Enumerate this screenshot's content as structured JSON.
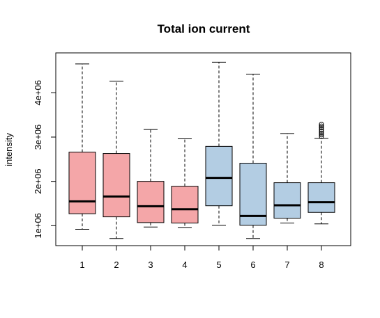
{
  "chart_data": {
    "type": "boxplot",
    "title": "Total ion current",
    "xlabel": "",
    "ylabel": "intensity",
    "categories": [
      "1",
      "2",
      "3",
      "4",
      "5",
      "6",
      "7",
      "8"
    ],
    "y_ticks": [
      1000000,
      2000000,
      3000000,
      4000000
    ],
    "y_tick_labels": [
      "1e+06",
      "2e+06",
      "3e+06",
      "4e+06"
    ],
    "ylim": [
      550000,
      4900000
    ],
    "grid": false,
    "legend": "none",
    "colors": {
      "group_a": "#F4A6A8",
      "group_b": "#B3CDE3",
      "stroke": "#000000"
    },
    "boxes": [
      {
        "label": "1",
        "color_group": "group_a",
        "whisker_low": 920000,
        "q1": 1270000,
        "median": 1550000,
        "q3": 2660000,
        "whisker_high": 4650000,
        "outliers": []
      },
      {
        "label": "2",
        "color_group": "group_a",
        "whisker_low": 710000,
        "q1": 1200000,
        "median": 1660000,
        "q3": 2630000,
        "whisker_high": 4260000,
        "outliers": []
      },
      {
        "label": "3",
        "color_group": "group_a",
        "whisker_low": 970000,
        "q1": 1070000,
        "median": 1440000,
        "q3": 2000000,
        "whisker_high": 3170000,
        "outliers": []
      },
      {
        "label": "4",
        "color_group": "group_a",
        "whisker_low": 960000,
        "q1": 1060000,
        "median": 1370000,
        "q3": 1890000,
        "whisker_high": 2960000,
        "outliers": []
      },
      {
        "label": "5",
        "color_group": "group_b",
        "whisker_low": 1010000,
        "q1": 1450000,
        "median": 2080000,
        "q3": 2790000,
        "whisker_high": 4690000,
        "outliers": []
      },
      {
        "label": "6",
        "color_group": "group_b",
        "whisker_low": 710000,
        "q1": 1010000,
        "median": 1220000,
        "q3": 2410000,
        "whisker_high": 4420000,
        "outliers": []
      },
      {
        "label": "7",
        "color_group": "group_b",
        "whisker_low": 1060000,
        "q1": 1170000,
        "median": 1460000,
        "q3": 1970000,
        "whisker_high": 3080000,
        "outliers": []
      },
      {
        "label": "8",
        "color_group": "group_b",
        "whisker_low": 1040000,
        "q1": 1300000,
        "median": 1530000,
        "q3": 1970000,
        "whisker_high": 2970000,
        "outliers": [
          3010000,
          3050000,
          3090000,
          3130000,
          3170000,
          3210000,
          3250000,
          3290000
        ]
      }
    ]
  }
}
